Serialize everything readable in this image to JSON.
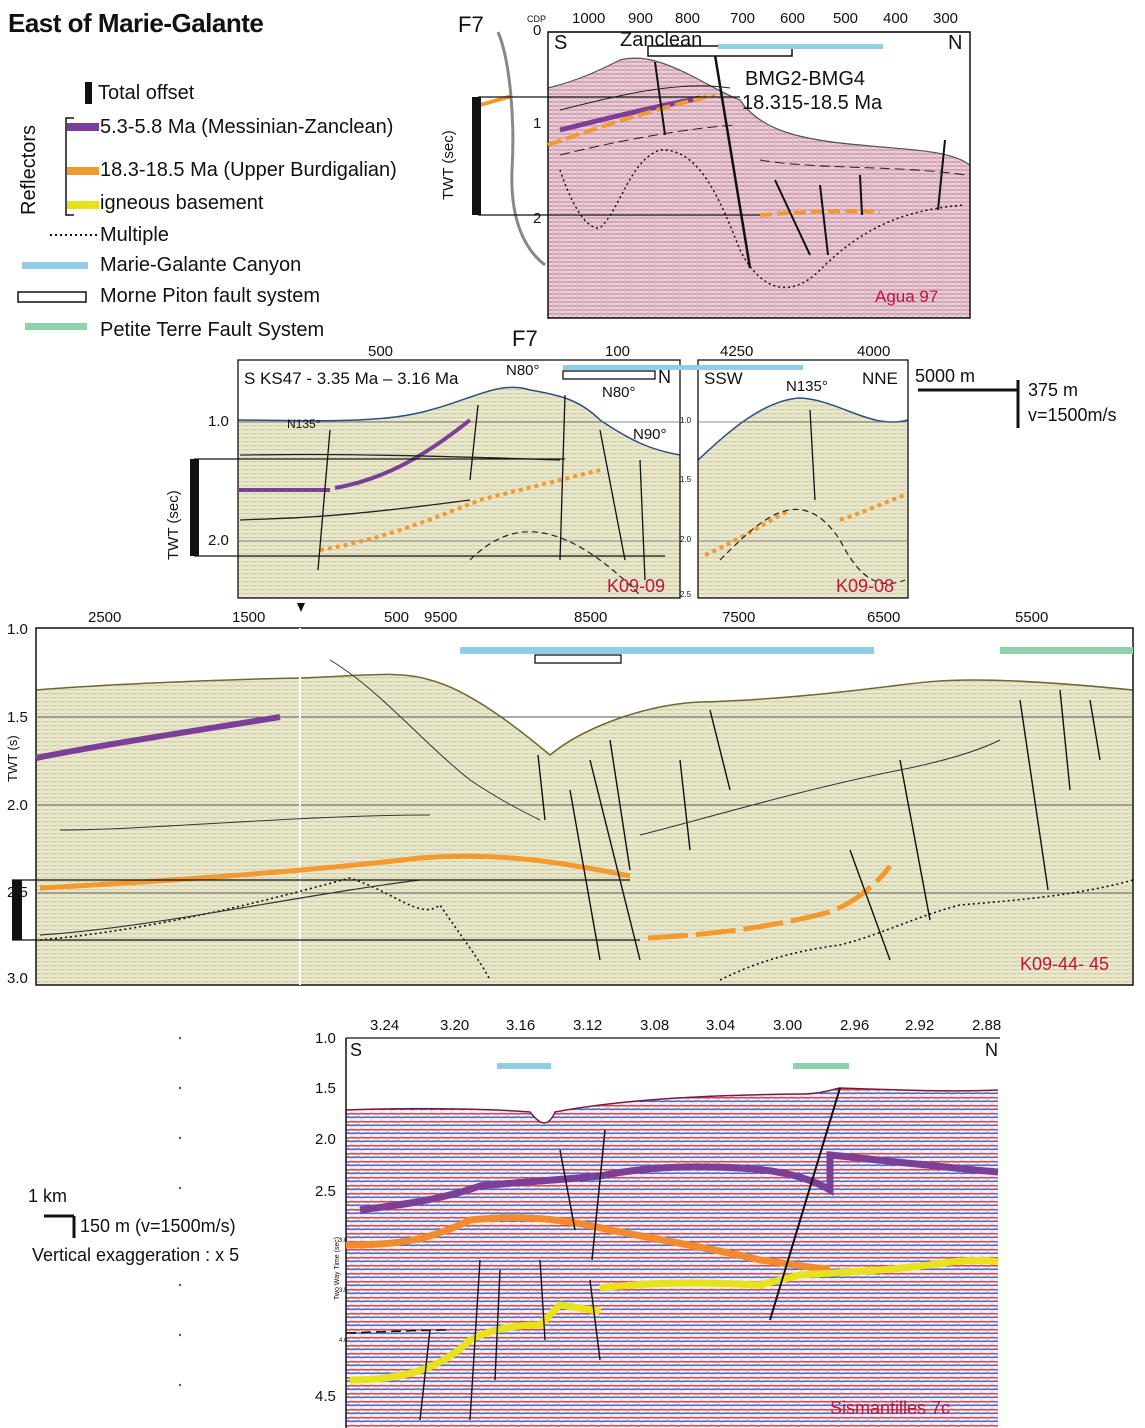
{
  "title": "East of Marie-Galante",
  "legend": {
    "total_offset": "Total offset",
    "reflectors_label": "Reflectors",
    "reflector_items": [
      {
        "label": "5.3-5.8 Ma (Messinian-Zanclean)",
        "color": "#7b3f98"
      },
      {
        "label": "18.3-18.5 Ma (Upper Burdigalian)",
        "color": "#f29a2e"
      },
      {
        "label": "igneous basement",
        "color": "#e8e21a"
      }
    ],
    "multiple": "Multiple",
    "marie_galante_canyon": "Marie-Galante Canyon",
    "morne_piton": "Morne Piton fault system",
    "petite_terre": "Petite Terre Fault System",
    "colors": {
      "canyon": "#92cde8",
      "petite_terre": "#8fd1a8",
      "orange": "#f29a2e",
      "purple": "#7b3f98"
    }
  },
  "panel1": {
    "fault_label": "F7",
    "cdp_label": "CDP",
    "cdp_ticks": [
      "1000",
      "900",
      "800",
      "700",
      "600",
      "500",
      "400",
      "300"
    ],
    "twt_ticks": [
      "0",
      "1",
      "2"
    ],
    "twt_label": "TWT (sec)",
    "south": "S",
    "north": "N",
    "zanclean": "Zanclean",
    "bmg": "BMG2-BMG4",
    "bmg_age": "18.315-18.5 Ma",
    "profile_name": "Agua 97"
  },
  "panel2": {
    "fault_label": "F7",
    "cdp_ticks_left": [
      "500",
      "100"
    ],
    "cdp_ticks_right": [
      "4250",
      "4000"
    ],
    "twt_ticks": [
      "1.0",
      "2.0"
    ],
    "twt_label": "TWT (sec)",
    "south_label": "S KS47 - 3.35 Ma – 3.16 Ma",
    "north": "N",
    "ssw": "SSW",
    "nne": "NNE",
    "n80a": "N80°",
    "n80b": "N80°",
    "n90": "N90°",
    "n135a": "N135°",
    "n135b": "N135°",
    "small_ticks": [
      "1.5",
      "2.0",
      "2.5"
    ],
    "profile_left": "K09-09",
    "profile_right": "K09-08",
    "scale_h": "5000 m",
    "scale_v": "375 m",
    "scale_v2": "v=1500m/s"
  },
  "panel3": {
    "cdp_ticks": [
      "2500",
      "1500",
      "500",
      "9500",
      "8500",
      "7500",
      "6500",
      "5500"
    ],
    "twt_ticks": [
      "1.0",
      "1.5",
      "2.0",
      "2.5",
      "3.0"
    ],
    "twt_label": "TWT (s)",
    "profile_name": "K09-44- 45"
  },
  "panel4": {
    "top_ticks": [
      "3.24",
      "3.20",
      "3.16",
      "3.12",
      "3.08",
      "3.04",
      "3.00",
      "2.96",
      "2.92",
      "2.88"
    ],
    "twt_ticks": [
      "1.0",
      "1.5",
      "2.0",
      "2.5",
      "4.5"
    ],
    "south": "S",
    "north": "N",
    "inner_label": "Two Way Time (sec)",
    "inner_ticks": [
      "3.0",
      "3.5",
      "4.0"
    ],
    "profile_name": "Sismantilles 7c"
  },
  "scale4": {
    "h": "1 km",
    "v": "150 m (v=1500m/s)",
    "ve": "Vertical exaggeration : x 5"
  }
}
